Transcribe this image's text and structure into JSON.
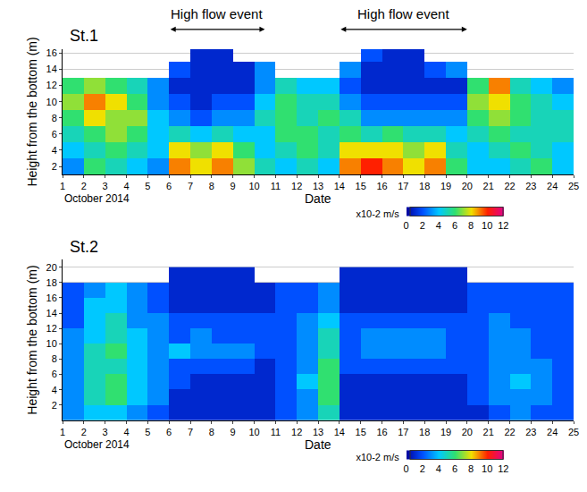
{
  "chart_data": [
    {
      "type": "heatmap",
      "title": "St.1",
      "xlabel": "Date",
      "xlabel_note": "October 2014",
      "ylabel": "Height from the bottom (m)",
      "x": [
        1.5,
        2.5,
        3.5,
        4.5,
        5.5,
        6.5,
        7.5,
        8.5,
        9.5,
        10.5,
        11.5,
        12.5,
        13.5,
        14.5,
        15.5,
        16.5,
        17.5,
        18.5,
        19.5,
        20.5,
        21.5,
        22.5,
        23.5,
        24.5
      ],
      "y": [
        2,
        4,
        6,
        8,
        10,
        12,
        14,
        16
      ],
      "z": [
        [
          3,
          6,
          5,
          4,
          3,
          9,
          8,
          9,
          7,
          5,
          4,
          5,
          4,
          9,
          10,
          9,
          8,
          9,
          6,
          4,
          4,
          5,
          6,
          4
        ],
        [
          4,
          5,
          6,
          5,
          4,
          8,
          7,
          8,
          6,
          4,
          5,
          6,
          5,
          8,
          8,
          8,
          7,
          8,
          5,
          4,
          5,
          6,
          5,
          4
        ],
        [
          5,
          6,
          7,
          6,
          4,
          5,
          4,
          5,
          4,
          4,
          6,
          6,
          5,
          6,
          5,
          6,
          5,
          5,
          4,
          5,
          6,
          5,
          5,
          5
        ],
        [
          6,
          8,
          7,
          7,
          4,
          3,
          2,
          3,
          3,
          5,
          6,
          5,
          6,
          5,
          3,
          3,
          3,
          3,
          3,
          6,
          7,
          6,
          5,
          5
        ],
        [
          7,
          9,
          8,
          6,
          3,
          2,
          1,
          2,
          2,
          4,
          6,
          5,
          5,
          3,
          2,
          2,
          2,
          2,
          2,
          7,
          8,
          6,
          5,
          4
        ],
        [
          6,
          7,
          6,
          5,
          3,
          1,
          1,
          1,
          1,
          3,
          5,
          4,
          4,
          2,
          1,
          1,
          1,
          1,
          1,
          6,
          9,
          5,
          4,
          3
        ],
        [
          null,
          null,
          null,
          null,
          null,
          2,
          1,
          1,
          1,
          3,
          null,
          null,
          null,
          3,
          1,
          1,
          1,
          2,
          3,
          null,
          null,
          null,
          null,
          null
        ],
        [
          null,
          null,
          null,
          null,
          null,
          null,
          1,
          1,
          null,
          null,
          null,
          null,
          null,
          null,
          2,
          1,
          1,
          null,
          null,
          null,
          null,
          null,
          null,
          null
        ]
      ],
      "xlim": [
        1,
        25
      ],
      "xticks": [
        1,
        2,
        3,
        4,
        5,
        6,
        7,
        8,
        9,
        10,
        11,
        12,
        13,
        14,
        15,
        16,
        17,
        18,
        19,
        20,
        21,
        22,
        23,
        24,
        25
      ],
      "ylim": [
        1,
        16.5
      ],
      "yticks": [
        2,
        4,
        6,
        8,
        10,
        12,
        14,
        16
      ],
      "grid": true,
      "colorbar": {
        "range": [
          0,
          12
        ],
        "ticks": [
          0,
          2,
          4,
          6,
          8,
          10,
          12
        ],
        "label": "x10-2 m/s"
      },
      "events": [
        {
          "text": "High flow event",
          "start": 6,
          "end": 10.5
        },
        {
          "text": "High flow event",
          "start": 14,
          "end": 20
        }
      ]
    },
    {
      "type": "heatmap",
      "title": "St.2",
      "xlabel": "Date",
      "xlabel_note": "October 2014",
      "ylabel": "Height from the bottom (m)",
      "x": [
        1.5,
        2.5,
        3.5,
        4.5,
        5.5,
        6.5,
        7.5,
        8.5,
        9.5,
        10.5,
        11.5,
        12.5,
        13.5,
        14.5,
        15.5,
        16.5,
        17.5,
        18.5,
        19.5,
        20.5,
        21.5,
        22.5,
        23.5,
        24.5
      ],
      "y": [
        1,
        3,
        5,
        7,
        9,
        11,
        13,
        15,
        17,
        19
      ],
      "z": [
        [
          3,
          4,
          4,
          3,
          2,
          1,
          1,
          1,
          1,
          1,
          2,
          3,
          5,
          1,
          1,
          1,
          1,
          1,
          1,
          1,
          2,
          3,
          2,
          2
        ],
        [
          3,
          5,
          6,
          4,
          3,
          1,
          1,
          1,
          1,
          1,
          2,
          3,
          6,
          1,
          1,
          1,
          1,
          1,
          1,
          2,
          3,
          3,
          3,
          2
        ],
        [
          3,
          5,
          6,
          4,
          3,
          2,
          1,
          1,
          1,
          1,
          2,
          4,
          6,
          1,
          1,
          1,
          1,
          1,
          1,
          2,
          3,
          4,
          3,
          2
        ],
        [
          3,
          5,
          5,
          4,
          3,
          2,
          2,
          2,
          2,
          1,
          2,
          3,
          6,
          2,
          2,
          2,
          2,
          2,
          2,
          2,
          3,
          3,
          3,
          2
        ],
        [
          3,
          5,
          6,
          4,
          3,
          4,
          3,
          3,
          3,
          2,
          2,
          3,
          5,
          2,
          3,
          3,
          3,
          3,
          2,
          2,
          3,
          3,
          2,
          2
        ],
        [
          3,
          4,
          5,
          4,
          3,
          2,
          3,
          2,
          2,
          2,
          2,
          3,
          5,
          2,
          3,
          3,
          3,
          3,
          2,
          2,
          3,
          3,
          2,
          2
        ],
        [
          2,
          4,
          5,
          3,
          3,
          2,
          2,
          2,
          2,
          2,
          2,
          3,
          4,
          2,
          2,
          2,
          2,
          2,
          2,
          2,
          3,
          2,
          2,
          2
        ],
        [
          2,
          4,
          4,
          3,
          2,
          1,
          1,
          1,
          1,
          1,
          2,
          2,
          3,
          1,
          1,
          1,
          1,
          1,
          1,
          2,
          2,
          2,
          2,
          2
        ],
        [
          2,
          3,
          4,
          3,
          2,
          1,
          1,
          1,
          1,
          1,
          2,
          2,
          3,
          1,
          1,
          1,
          1,
          1,
          1,
          2,
          2,
          2,
          2,
          2
        ],
        [
          null,
          null,
          null,
          null,
          null,
          1,
          1,
          1,
          1,
          null,
          null,
          null,
          null,
          1,
          1,
          1,
          1,
          1,
          1,
          null,
          null,
          null,
          null,
          null
        ]
      ],
      "xlim": [
        1,
        25
      ],
      "xticks": [
        1,
        2,
        3,
        4,
        5,
        6,
        7,
        8,
        9,
        10,
        11,
        12,
        13,
        14,
        15,
        16,
        17,
        18,
        19,
        20,
        21,
        22,
        23,
        24,
        25
      ],
      "ylim": [
        0,
        21
      ],
      "yticks": [
        2,
        4,
        6,
        8,
        10,
        12,
        14,
        16,
        18,
        20
      ],
      "grid": true,
      "colorbar": {
        "range": [
          0,
          12
        ],
        "ticks": [
          0,
          2,
          4,
          6,
          8,
          10,
          12
        ],
        "label": "x10-2 m/s"
      }
    }
  ]
}
